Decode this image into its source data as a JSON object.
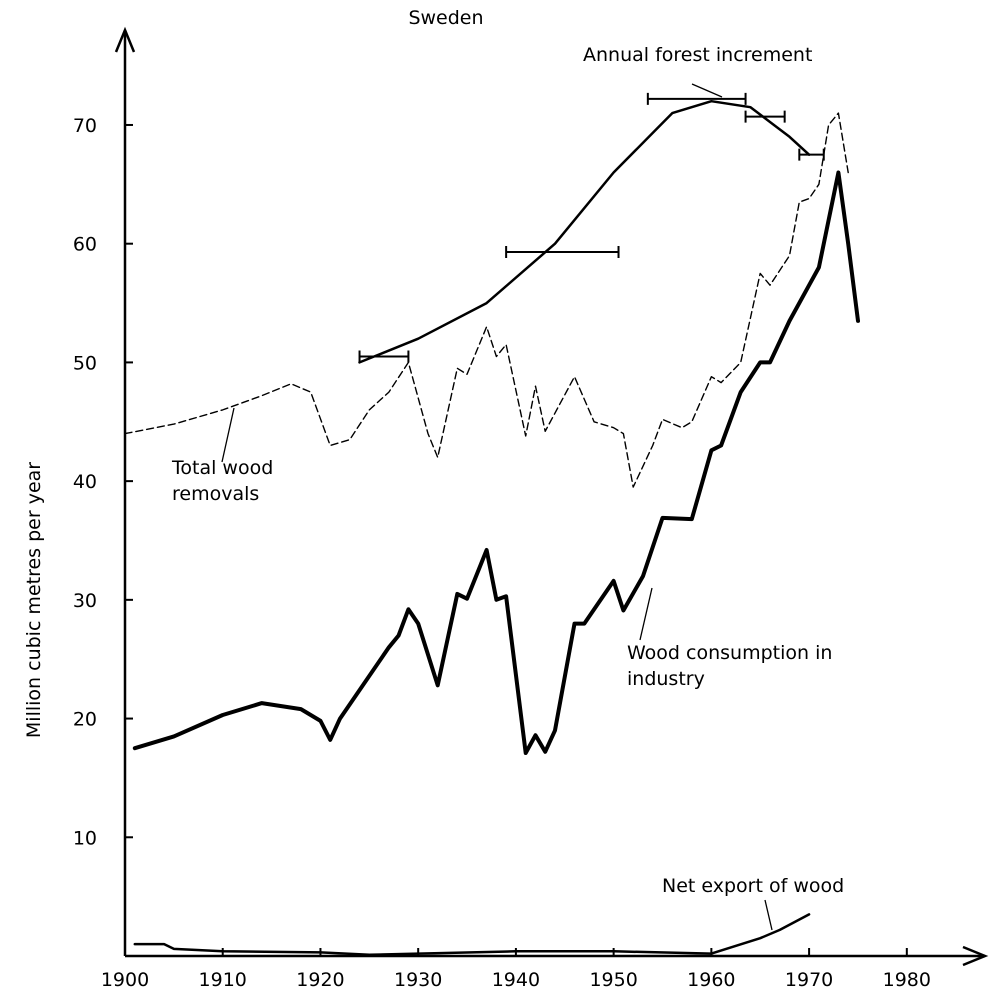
{
  "chart_data": {
    "type": "line",
    "title": "Sweden",
    "y_label": "Million cubic metres per year",
    "xlim": [
      1900,
      1988
    ],
    "ylim": [
      0,
      78
    ],
    "xticks": [
      1900,
      1910,
      1920,
      1930,
      1940,
      1950,
      1960,
      1970,
      1980
    ],
    "yticks": [
      10,
      20,
      30,
      40,
      50,
      60,
      70
    ],
    "series": [
      {
        "name": "Annual forest increment",
        "color": "#000",
        "line_style": "solid",
        "x": [
          1924,
          1930,
          1937,
          1944,
          1950,
          1956,
          1960,
          1964,
          1968,
          1970
        ],
        "values": [
          50,
          52,
          55,
          60,
          66,
          71,
          72,
          71.5,
          69,
          67.5
        ],
        "intervals": [
          {
            "y": 50.5,
            "x": [
              1924,
              1929
            ]
          },
          {
            "y": 59.3,
            "x": [
              1939,
              1950.5
            ]
          },
          {
            "y": 72.2,
            "x": [
              1953.5,
              1963.5
            ]
          },
          {
            "y": 70.7,
            "x": [
              1963.5,
              1967.5
            ]
          },
          {
            "y": 67.5,
            "x": [
              1969,
              1971.5
            ]
          }
        ]
      },
      {
        "name": "Total wood removals",
        "color": "#000",
        "line_style": "dashed",
        "x": [
          1900,
          1905,
          1910,
          1914,
          1917,
          1919,
          1921,
          1923,
          1925,
          1927,
          1929,
          1931,
          1932,
          1934,
          1935,
          1937,
          1938,
          1939,
          1941,
          1942,
          1943,
          1946,
          1948,
          1950,
          1951,
          1952,
          1954,
          1955,
          1957,
          1958,
          1960,
          1961,
          1963,
          1965,
          1966,
          1968,
          1969,
          1970,
          1971,
          1972,
          1973,
          1974
        ],
        "values": [
          44,
          44.8,
          46,
          47.2,
          48.2,
          47.5,
          43,
          43.5,
          46,
          47.5,
          50,
          44,
          42,
          49.5,
          49,
          53,
          50.5,
          51.5,
          43.8,
          48,
          44.2,
          48.8,
          45,
          44.5,
          44,
          39.5,
          43,
          45.2,
          44.5,
          45,
          48.8,
          48.3,
          50,
          57.5,
          56.5,
          59,
          63.5,
          63.8,
          65,
          70,
          71,
          66
        ]
      },
      {
        "name": "Wood consumption in industry",
        "color": "#000",
        "line_style": "thick",
        "x": [
          1901,
          1905,
          1910,
          1914,
          1918,
          1920,
          1921,
          1922,
          1927,
          1928,
          1929,
          1930,
          1932,
          1934,
          1935,
          1937,
          1938,
          1939,
          1941,
          1942,
          1943,
          1944,
          1946,
          1947,
          1950,
          1951,
          1953,
          1955,
          1958,
          1960,
          1961,
          1963,
          1965,
          1966,
          1968,
          1970,
          1971,
          1973,
          1974,
          1975
        ],
        "values": [
          17.5,
          18.5,
          20.3,
          21.3,
          20.8,
          19.8,
          18.2,
          20,
          26,
          27,
          29.2,
          28,
          22.8,
          30.5,
          30.1,
          34.2,
          30,
          30.3,
          17.1,
          18.6,
          17.2,
          19,
          28,
          28,
          31.6,
          29.1,
          32,
          36.9,
          36.8,
          42.6,
          43,
          47.5,
          50,
          50,
          53.5,
          56.5,
          58,
          66,
          60,
          53.5
        ]
      },
      {
        "name": "Net export of wood",
        "color": "#000",
        "line_style": "solid",
        "x": [
          1901,
          1904,
          1905,
          1910,
          1920,
          1925,
          1930,
          1940,
          1950,
          1960,
          1965,
          1967,
          1970
        ],
        "values": [
          1,
          1,
          0.6,
          0.4,
          0.3,
          0.1,
          0.2,
          0.4,
          0.4,
          0.2,
          1.5,
          2.2,
          3.5
        ]
      }
    ]
  }
}
